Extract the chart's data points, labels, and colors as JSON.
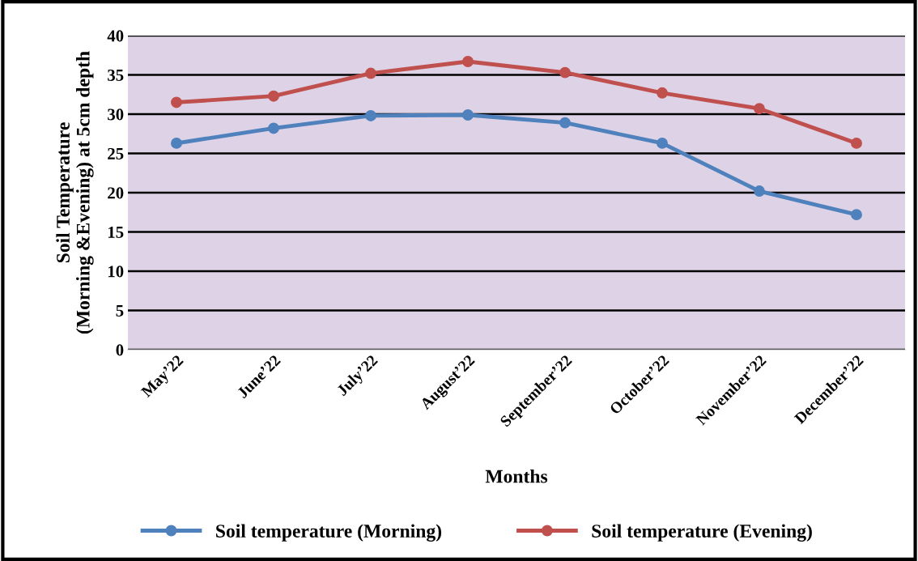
{
  "chart_data": {
    "type": "line",
    "xlabel": "Months",
    "ylabel": "Soil Temperature\n(Morning &Evening) at 5cm depth",
    "categories": [
      "May’22",
      "June’22",
      "July’22",
      "August’22",
      "September’22",
      "October’22",
      "November’22",
      "December’22"
    ],
    "series": [
      {
        "name": "Soil temperature (Morning)",
        "color": "#4f81bd",
        "values": [
          26.3,
          28.2,
          29.8,
          29.9,
          28.9,
          26.3,
          20.2,
          17.2
        ]
      },
      {
        "name": "Soil temperature (Evening)",
        "color": "#c0504d",
        "values": [
          31.5,
          32.3,
          35.2,
          36.7,
          35.3,
          32.7,
          30.7,
          26.3
        ]
      }
    ],
    "ylim": [
      0,
      40
    ],
    "yticks": [
      0,
      5,
      10,
      15,
      20,
      25,
      30,
      35,
      40
    ],
    "grid": "y",
    "legend": "bottom",
    "marker": "circle",
    "line_style": "solid"
  }
}
